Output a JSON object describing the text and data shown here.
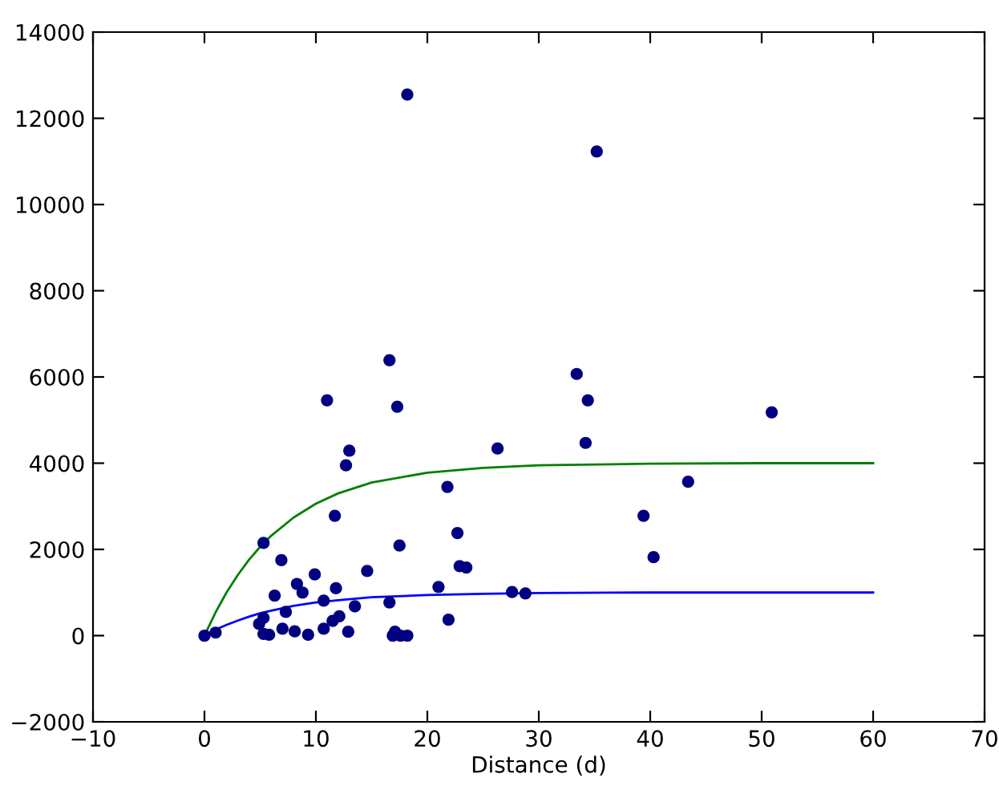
{
  "chart_data": {
    "type": "scatter",
    "xlabel": "Distance (d)",
    "xlim": [
      -10,
      70
    ],
    "ylim": [
      -2000,
      14000
    ],
    "xticks": [
      {
        "value": -10,
        "label": "−10"
      },
      0,
      10,
      20,
      30,
      40,
      50,
      60,
      70
    ],
    "yticks": [
      {
        "value": -2000,
        "label": "−2000"
      },
      0,
      2000,
      4000,
      6000,
      8000,
      10000,
      12000,
      14000
    ],
    "grid": false,
    "series": [
      {
        "color": "#000080",
        "marker": "circle",
        "x": [
          0,
          1.0,
          5.3,
          4.9,
          5.3,
          5.3,
          5.8,
          6.9,
          6.3,
          7.0,
          7.3,
          8.1,
          8.3,
          8.8,
          9.3,
          9.9,
          10.7,
          10.7,
          11.0,
          11.7,
          11.8,
          11.5,
          12.1,
          12.7,
          13.0,
          12.9,
          13.5,
          14.6,
          16.6,
          17.3,
          17.5,
          16.6,
          16.9,
          17.1,
          17.6,
          18.2,
          18.2,
          21.0,
          21.8,
          21.9,
          22.7,
          22.9,
          23.5,
          26.3,
          27.6,
          28.8,
          33.4,
          34.4,
          34.2,
          35.2,
          39.4,
          40.3,
          43.4,
          50.9
        ],
        "values": [
          0,
          70,
          2150,
          270,
          410,
          40,
          20,
          1750,
          930,
          160,
          550,
          100,
          1200,
          1000,
          20,
          1420,
          810,
          160,
          5460,
          2780,
          1100,
          340,
          450,
          3950,
          4290,
          90,
          680,
          1500,
          6390,
          5310,
          2090,
          770,
          0,
          90,
          0,
          0,
          12550,
          1130,
          3450,
          370,
          2380,
          1610,
          1580,
          4340,
          1010,
          980,
          6070,
          5460,
          4470,
          11230,
          2780,
          1820,
          3570,
          5180
        ]
      },
      {
        "type": "line",
        "color": "#008000",
        "marker": "none",
        "line_style": "solid",
        "x": [
          0,
          1,
          2,
          3,
          4,
          5,
          6,
          8,
          10,
          12,
          15,
          20,
          25,
          30,
          40,
          50,
          60
        ],
        "values": [
          0,
          540,
          1010,
          1410,
          1760,
          2060,
          2320,
          2740,
          3060,
          3300,
          3550,
          3780,
          3890,
          3950,
          3990,
          4000,
          4000
        ]
      },
      {
        "type": "line",
        "color": "#0000ff",
        "marker": "none",
        "line_style": "solid",
        "x": [
          0,
          1,
          2,
          3,
          4,
          5,
          6,
          8,
          10,
          12,
          15,
          20,
          25,
          30,
          40,
          50,
          60
        ],
        "values": [
          0,
          140,
          250,
          350,
          440,
          520,
          580,
          690,
          770,
          820,
          890,
          940,
          970,
          990,
          1000,
          1000,
          1000
        ]
      }
    ]
  }
}
